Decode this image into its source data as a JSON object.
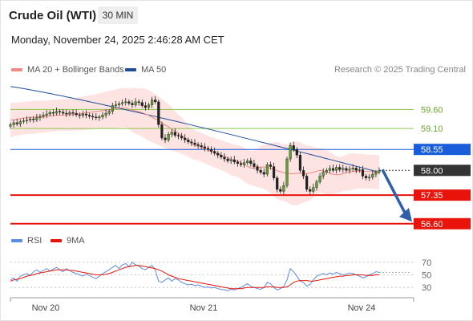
{
  "header": {
    "instrument": "Crude Oil (WTI)",
    "timeframe": "30 MIN",
    "datetime": "Monday, November 24, 2025 2:46:28 AM CET"
  },
  "legend": {
    "ma20": "MA 20 + Bollinger Bands",
    "ma50": "MA 50",
    "credit": "Research © 2025 Trading Central",
    "rsi": "RSI",
    "rsi_ma": "9MA"
  },
  "colors": {
    "ma20": "#f08a84",
    "bollinger_fill": "#fde3e1",
    "ma50": "#1f4e9a",
    "resistance": "#8cc64a",
    "pivot": "#1a5ddb",
    "support": "#e8140c",
    "last": "#333333",
    "rsi": "#5b8de0",
    "rsi_ma": "#e8140c",
    "arrow": "#2f5fa8"
  },
  "chart_data": [
    {
      "type": "candlestick",
      "y_range": [
        56.3,
        60.45
      ],
      "x_ticks": [
        "Nov 20",
        "Nov 21",
        "Nov 24"
      ],
      "levels": [
        {
          "value": 59.6,
          "label": "59.60",
          "kind": "resistance"
        },
        {
          "value": 59.1,
          "label": "59.10",
          "kind": "resistance"
        },
        {
          "value": 58.55,
          "label": "58.55",
          "kind": "pivot"
        },
        {
          "value": 58.0,
          "label": "58.00",
          "kind": "last"
        },
        {
          "value": 57.35,
          "label": "57.35",
          "kind": "support"
        },
        {
          "value": 56.6,
          "label": "56.60",
          "kind": "support"
        }
      ],
      "close": [
        59.2,
        59.25,
        59.22,
        59.28,
        59.3,
        59.32,
        59.35,
        59.33,
        59.38,
        59.42,
        59.45,
        59.48,
        59.52,
        59.5,
        59.55,
        59.53,
        59.5,
        59.48,
        59.52,
        59.5,
        59.46,
        59.44,
        59.48,
        59.45,
        59.42,
        59.4,
        59.38,
        59.4,
        59.45,
        59.5,
        59.55,
        59.7,
        59.72,
        59.75,
        59.78,
        59.8,
        59.76,
        59.72,
        59.8,
        59.78,
        59.7,
        59.65,
        59.72,
        59.85,
        59.8,
        59.2,
        58.85,
        58.8,
        58.95,
        59.0,
        58.92,
        58.9,
        58.85,
        58.8,
        58.75,
        58.72,
        58.68,
        58.65,
        58.62,
        58.58,
        58.55,
        58.5,
        58.45,
        58.4,
        58.35,
        58.3,
        58.25,
        58.28,
        58.22,
        58.18,
        58.15,
        58.2,
        58.25,
        58.18,
        58.1,
        58.0,
        57.95,
        57.9,
        58.15,
        58.1,
        57.8,
        57.5,
        57.45,
        57.6,
        58.3,
        58.65,
        58.55,
        58.4,
        58.0,
        57.85,
        57.5,
        57.45,
        57.55,
        57.7,
        57.85,
        57.95,
        58.0,
        58.05,
        58.0,
        58.08,
        58.02,
        58.05,
        58.0,
        58.03,
        58.06,
        58.0,
        58.02,
        57.85,
        57.8,
        57.82,
        57.9,
        57.95,
        58.0
      ],
      "bollinger": {
        "upper": 60.3,
        "lower": 57.4
      },
      "ma50": {
        "start": 60.2,
        "end": 57.95
      }
    },
    {
      "type": "line",
      "name": "RSI",
      "y_ticks": [
        70,
        50,
        30
      ],
      "values": [
        42,
        45,
        40,
        48,
        50,
        52,
        49,
        55,
        58,
        54,
        57,
        60,
        56,
        59,
        62,
        58,
        55,
        60,
        57,
        54,
        52,
        50,
        48,
        51,
        49,
        46,
        44,
        48,
        52,
        55,
        58,
        62,
        65,
        60,
        66,
        68,
        63,
        70,
        66,
        64,
        60,
        58,
        62,
        65,
        58,
        40,
        38,
        42,
        45,
        40,
        44,
        42,
        38,
        36,
        34,
        35,
        33,
        34,
        32,
        30,
        31,
        29,
        30,
        28,
        27,
        26,
        25,
        27,
        26,
        28,
        30,
        33,
        36,
        32,
        30,
        28,
        27,
        30,
        38,
        36,
        30,
        26,
        28,
        32,
        42,
        60,
        55,
        48,
        40,
        38,
        32,
        35,
        42,
        48,
        50,
        52,
        50,
        53,
        51,
        54,
        52,
        50,
        51,
        53,
        52,
        50,
        48,
        45,
        47,
        50,
        52,
        55,
        54
      ],
      "ma9": [
        40,
        42,
        43,
        44,
        46,
        48,
        49,
        50,
        52,
        53,
        54,
        55,
        56,
        57,
        58,
        58,
        58,
        58,
        57,
        57,
        56,
        55,
        54,
        53,
        52,
        51,
        50,
        50,
        50,
        51,
        52,
        54,
        56,
        58,
        60,
        62,
        63,
        64,
        65,
        65,
        64,
        63,
        62,
        61,
        60,
        58,
        56,
        53,
        50,
        48,
        46,
        44,
        43,
        42,
        41,
        40,
        39,
        38,
        37,
        36,
        35,
        34,
        33,
        32,
        31,
        30,
        29,
        28,
        28,
        28,
        28,
        29,
        30,
        30,
        30,
        30,
        30,
        30,
        31,
        31,
        31,
        30,
        30,
        30,
        31,
        34,
        38,
        40,
        41,
        41,
        41,
        40,
        40,
        41,
        42,
        43,
        44,
        45,
        46,
        47,
        48,
        48,
        49,
        49,
        50,
        50,
        50,
        50,
        49,
        49,
        49,
        50,
        50
      ]
    }
  ]
}
